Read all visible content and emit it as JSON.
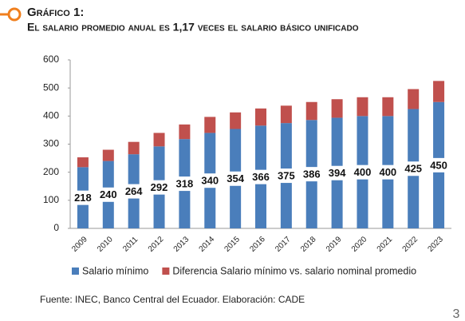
{
  "chart_data": {
    "type": "stacked_bar",
    "title": "Gráfico 1:",
    "subtitle": "El salario promedio anual es 1,17 veces el salario básico unificado",
    "categories": [
      "2009",
      "2010",
      "2011",
      "2012",
      "2013",
      "2014",
      "2015",
      "2016",
      "2017",
      "2018",
      "2019",
      "2020",
      "2021",
      "2022",
      "2023"
    ],
    "series": [
      {
        "name": "Salario mínimo",
        "color": "#4a7ebb",
        "data_labels": true,
        "values": [
          218,
          240,
          264,
          292,
          318,
          340,
          354,
          366,
          375,
          386,
          394,
          400,
          400,
          425,
          450
        ]
      },
      {
        "name": "Diferencia Salario mínimo vs. salario nominal promedio",
        "color": "#c0504d",
        "values": [
          35,
          40,
          44,
          48,
          52,
          57,
          59,
          61,
          62,
          64,
          66,
          67,
          67,
          71,
          75
        ]
      }
    ],
    "ylim": [
      0,
      600
    ],
    "yticks": [
      0,
      100,
      200,
      300,
      400,
      500,
      600
    ],
    "legend": "bottom",
    "source": "Fuente: INEC, Banco Central del Ecuador. Elaboración: CADE",
    "page_number": "3"
  }
}
